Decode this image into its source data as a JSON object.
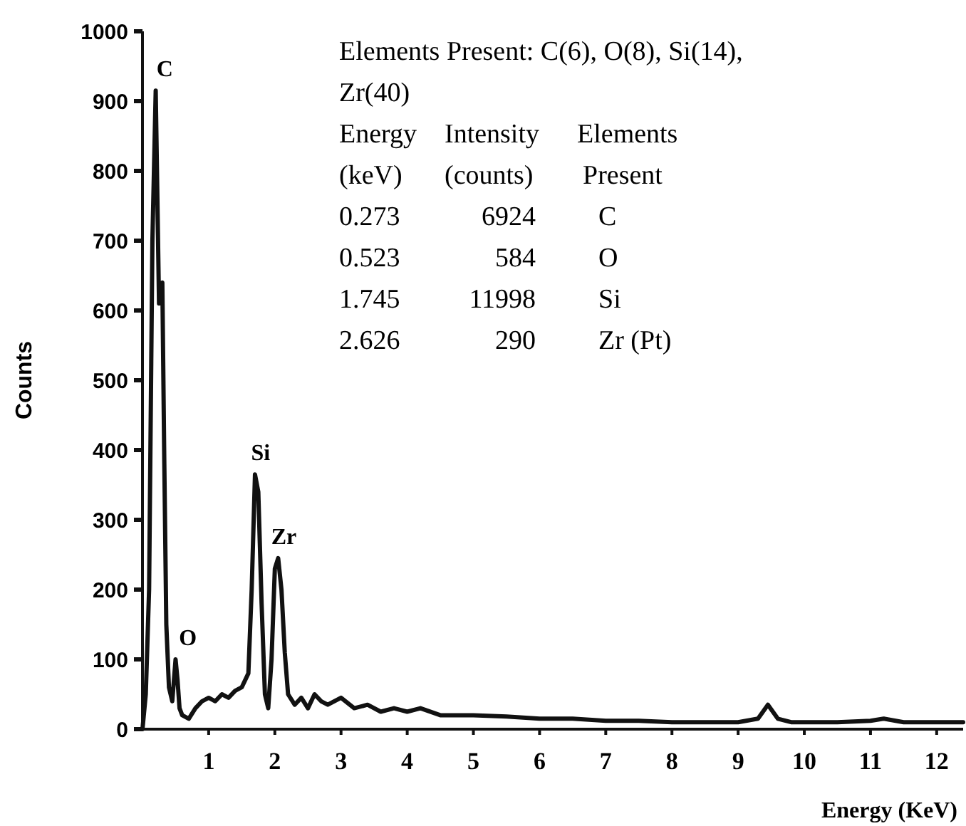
{
  "chart_data": {
    "type": "line",
    "xlabel": "Energy (KeV)",
    "ylabel": "Counts",
    "x": [
      0,
      0.05,
      0.1,
      0.15,
      0.2,
      0.25,
      0.3,
      0.33,
      0.36,
      0.4,
      0.45,
      0.5,
      0.53,
      0.56,
      0.6,
      0.7,
      0.8,
      0.9,
      1.0,
      1.1,
      1.2,
      1.3,
      1.4,
      1.5,
      1.6,
      1.65,
      1.7,
      1.75,
      1.8,
      1.85,
      1.9,
      1.95,
      2.0,
      2.05,
      2.1,
      2.15,
      2.2,
      2.3,
      2.4,
      2.5,
      2.6,
      2.7,
      2.8,
      3.0,
      3.2,
      3.4,
      3.6,
      3.8,
      4.0,
      4.2,
      4.5,
      5.0,
      5.5,
      6.0,
      6.5,
      7.0,
      7.5,
      8.0,
      8.5,
      9.0,
      9.3,
      9.45,
      9.6,
      9.8,
      10,
      10.5,
      11,
      11.2,
      11.5,
      12,
      12.4
    ],
    "series": [
      {
        "color": "#111111",
        "values": [
          0,
          50,
          200,
          700,
          915,
          610,
          640,
          380,
          150,
          60,
          40,
          100,
          70,
          30,
          20,
          15,
          30,
          40,
          45,
          40,
          50,
          45,
          55,
          60,
          80,
          200,
          365,
          340,
          180,
          50,
          30,
          100,
          230,
          245,
          200,
          110,
          50,
          35,
          45,
          30,
          50,
          40,
          35,
          45,
          30,
          35,
          25,
          30,
          25,
          30,
          20,
          20,
          18,
          15,
          15,
          12,
          12,
          10,
          10,
          10,
          15,
          35,
          15,
          10,
          10,
          10,
          12,
          15,
          10,
          10,
          10
        ]
      }
    ],
    "xlim": [
      0,
      12.4
    ],
    "xticks": [
      1,
      2,
      3,
      4,
      5,
      6,
      7,
      8,
      9,
      10,
      11,
      12
    ],
    "ylim": [
      0,
      1000
    ],
    "yticks": [
      0,
      100,
      200,
      300,
      400,
      500,
      600,
      700,
      800,
      900,
      1000
    ],
    "grid": false,
    "marker": "none",
    "line_style": "solid",
    "annotations": [
      {
        "text": "C",
        "x": 0.25,
        "y": 915
      },
      {
        "text": "O",
        "x": 0.6,
        "y": 100
      },
      {
        "text": "Si",
        "x": 1.7,
        "y": 365
      },
      {
        "text": "Zr",
        "x": 2.05,
        "y": 245
      },
      "Elements Present: C(6), O(8), Si(14),",
      "Zr(40)",
      "Energy",
      "Intensity",
      "Elements",
      "(keV)",
      "(counts)",
      "Present",
      "0.273",
      "6924",
      "C",
      "0.523",
      "584",
      "O",
      "1.745",
      "11998",
      "Si",
      "2.626",
      "290",
      "Zr  (Pt)"
    ]
  }
}
